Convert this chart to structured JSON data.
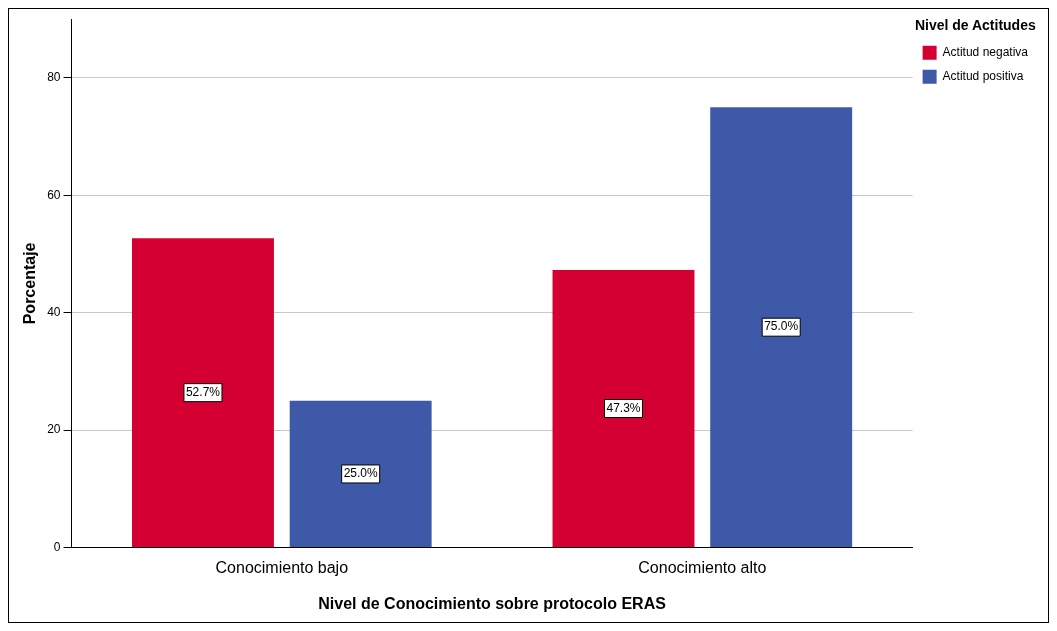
{
  "chart_data": {
    "type": "bar",
    "xlabel": "Nivel de Conocimiento sobre protocolo ERAS",
    "ylabel": "Porcentaje",
    "legend_title": "Nivel de Actitudes",
    "categories": [
      "Conocimiento bajo",
      "Conocimiento alto"
    ],
    "series": [
      {
        "name": "Actitud negativa",
        "color": "#d50032",
        "values": [
          52.7,
          47.3
        ],
        "value_labels": [
          "52.7%",
          "47.3%"
        ]
      },
      {
        "name": "Actitud positiva",
        "color": "#3e59a8",
        "values": [
          25.0,
          75.0
        ],
        "value_labels": [
          "25.0%",
          "75.0%"
        ]
      }
    ],
    "ylim": [
      0,
      90
    ],
    "yticks": [
      0,
      20,
      40,
      60,
      80
    ],
    "grid": "y",
    "legend": "top right"
  }
}
